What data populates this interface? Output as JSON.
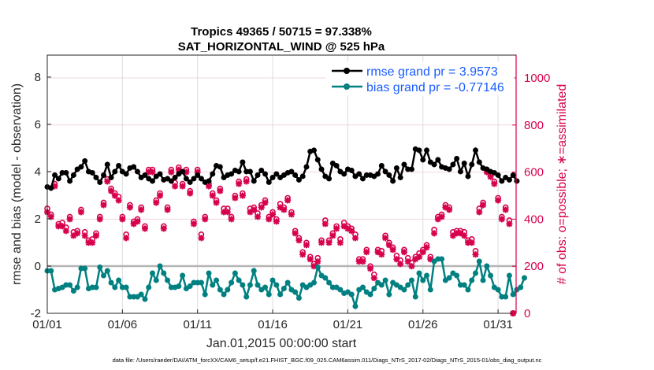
{
  "chart_data": {
    "type": "line",
    "title": [
      "Tropics 49365 / 50715 = 97.338%",
      "SAT_HORIZONTAL_WIND @ 525 hPa"
    ],
    "xlabel": "Jan.01,2015 00:00:00 start",
    "ylabel": "rmse and bias (model - observation)",
    "ylabel_right": "# of obs: o=possible; ∗=assimilated",
    "xticks": [
      {
        "day": 0,
        "label": "01/01"
      },
      {
        "day": 5,
        "label": "01/06"
      },
      {
        "day": 10,
        "label": "01/11"
      },
      {
        "day": 15,
        "label": "01/16"
      },
      {
        "day": 20,
        "label": "01/21"
      },
      {
        "day": 25,
        "label": "01/26"
      },
      {
        "day": 30,
        "label": "01/31"
      }
    ],
    "yticks": [
      "-2",
      "0",
      "2",
      "4",
      "6",
      "8"
    ],
    "yticks_right": [
      "0",
      "200",
      "400",
      "600",
      "800",
      "1000"
    ],
    "xlim": [
      0,
      31.2
    ],
    "ylim": [
      -2,
      8.93
    ],
    "ylim_right": [
      0,
      1097
    ],
    "x_step_days": 0.25,
    "legend": {
      "position": "top-right",
      "entries": [
        "rmse grand pr = 3.9573",
        "bias grand pr = -0.77146"
      ]
    },
    "colors": {
      "rmse": "#000000",
      "bias": "#008080",
      "obs": "#d6004c",
      "legend_text": "#1a5cff"
    },
    "series": [
      {
        "name": "rmse",
        "values": [
          3.35,
          3.3,
          3.85,
          3.7,
          3.95,
          3.95,
          3.6,
          3.85,
          4.1,
          4.2,
          4.45,
          4.0,
          3.95,
          3.75,
          3.55,
          3.85,
          4.3,
          3.75,
          4.0,
          4.25,
          4.0,
          3.9,
          4.15,
          4.2,
          4.0,
          3.75,
          3.85,
          3.7,
          3.6,
          3.8,
          3.9,
          3.65,
          3.7,
          3.6,
          3.75,
          3.9,
          4.0,
          3.7,
          3.55,
          3.7,
          3.85,
          3.7,
          3.55,
          3.6,
          3.9,
          4.25,
          4.2,
          3.75,
          3.85,
          3.9,
          4.05,
          4.0,
          4.4,
          4.0,
          4.0,
          3.6,
          3.85,
          4.05,
          3.9,
          3.55,
          3.75,
          3.9,
          3.75,
          3.85,
          3.95,
          4.0,
          3.85,
          3.65,
          3.8,
          4.2,
          4.85,
          4.9,
          4.5,
          4.1,
          3.8,
          3.7,
          4.35,
          4.25,
          4.0,
          3.9,
          4.1,
          4.05,
          3.8,
          3.9,
          3.7,
          3.85,
          3.85,
          3.8,
          3.9,
          4.25,
          4.0,
          3.85,
          3.6,
          4.15,
          3.75,
          4.3,
          4.1,
          4.1,
          4.95,
          4.9,
          4.5,
          4.9,
          4.4,
          4.3,
          4.5,
          4.2,
          4.15,
          4.1,
          4.3,
          4.55,
          4.0,
          4.35,
          3.8,
          4.3,
          4.9,
          4.4,
          4.15,
          4.1,
          4.0,
          3.95,
          3.85,
          3.6,
          3.75,
          3.65,
          3.85,
          3.6
        ]
      },
      {
        "name": "bias",
        "values": [
          -0.2,
          -0.2,
          -1.0,
          -0.95,
          -0.9,
          -0.8,
          -0.8,
          -1.05,
          -0.9,
          -0.1,
          -0.1,
          -0.95,
          -0.9,
          -0.9,
          -0.05,
          -0.4,
          -0.2,
          -0.7,
          -0.9,
          -0.6,
          -0.9,
          -0.9,
          -1.3,
          -1.3,
          -1.3,
          -1.2,
          -1.4,
          -0.9,
          -0.3,
          -0.6,
          0.0,
          -0.3,
          -0.6,
          -0.9,
          -0.9,
          -0.85,
          -0.4,
          -0.95,
          -0.85,
          -0.7,
          -0.7,
          -0.7,
          -1.2,
          -0.3,
          -0.8,
          -0.6,
          -1.0,
          -1.2,
          -1.0,
          -0.7,
          -0.3,
          -0.6,
          -0.8,
          -1.3,
          -0.8,
          -0.2,
          -0.8,
          -1.0,
          -0.9,
          -1.2,
          -0.6,
          -0.8,
          -1.2,
          -0.95,
          -0.7,
          -1.0,
          -1.1,
          -1.35,
          -0.8,
          -0.9,
          -0.8,
          -0.7,
          -0.05,
          -0.4,
          -0.5,
          -0.7,
          -0.9,
          -0.9,
          -1.0,
          -1.15,
          -1.1,
          -1.2,
          -1.7,
          -1.0,
          -0.9,
          -1.1,
          -1.2,
          -0.95,
          -0.7,
          -0.8,
          -0.6,
          -1.2,
          -0.7,
          -0.8,
          -0.9,
          -1.0,
          -0.8,
          -0.6,
          -1.3,
          -0.3,
          -0.6,
          -0.4,
          -1.0,
          0.2,
          0.3,
          0.3,
          -0.6,
          -0.5,
          -0.3,
          -0.4,
          -0.8,
          -0.8,
          -1.0,
          -0.6,
          -0.3,
          0.2,
          -0.6,
          0.0,
          -0.4,
          -0.9,
          -1.0,
          -1.3,
          -1.3,
          -0.4,
          -1.2,
          -1.0,
          -0.9,
          -0.5
        ]
      },
      {
        "name": "obs_assimilated",
        "values": [
          430,
          410,
          540,
          370,
          370,
          350,
          400,
          330,
          340,
          430,
          330,
          300,
          300,
          330,
          400,
          460,
          560,
          520,
          500,
          480,
          400,
          320,
          450,
          380,
          390,
          440,
          360,
          600,
          600,
          470,
          500,
          360,
          440,
          600,
          540,
          610,
          540,
          600,
          510,
          380,
          600,
          320,
          400,
          540,
          500,
          470,
          520,
          430,
          430,
          400,
          490,
          550,
          500,
          560,
          430,
          440,
          410,
          450,
          470,
          400,
          420,
          390,
          450,
          440,
          480,
          420,
          340,
          310,
          250,
          290,
          230,
          200,
          220,
          300,
          380,
          300,
          330,
          360,
          300,
          370,
          360,
          350,
          320,
          220,
          220,
          260,
          190,
          150,
          260,
          250,
          320,
          290,
          270,
          230,
          210,
          260,
          220,
          200,
          230,
          240,
          260,
          280,
          230,
          340,
          400,
          410,
          450,
          440,
          330,
          340,
          340,
          330,
          300,
          300,
          250,
          430,
          460,
          600,
          580,
          550,
          480,
          400,
          440,
          380,
          0
        ]
      },
      {
        "name": "obs_possible",
        "values": [
          445,
          420,
          550,
          380,
          385,
          365,
          410,
          345,
          350,
          440,
          345,
          310,
          315,
          340,
          410,
          470,
          570,
          530,
          510,
          495,
          410,
          335,
          460,
          390,
          400,
          450,
          370,
          610,
          610,
          480,
          510,
          370,
          450,
          610,
          555,
          620,
          550,
          610,
          520,
          390,
          610,
          335,
          410,
          550,
          510,
          480,
          530,
          445,
          445,
          410,
          500,
          560,
          510,
          570,
          445,
          450,
          425,
          460,
          480,
          410,
          430,
          400,
          465,
          450,
          490,
          430,
          350,
          320,
          260,
          300,
          240,
          210,
          235,
          310,
          395,
          310,
          340,
          370,
          315,
          385,
          370,
          360,
          335,
          230,
          230,
          270,
          200,
          165,
          270,
          265,
          330,
          300,
          280,
          245,
          225,
          270,
          235,
          215,
          240,
          255,
          270,
          290,
          240,
          355,
          410,
          420,
          460,
          450,
          345,
          350,
          350,
          345,
          310,
          315,
          265,
          445,
          470,
          610,
          590,
          560,
          490,
          410,
          450,
          395,
          0
        ]
      }
    ],
    "grid": true,
    "footer": "data file: /Users/raeder/DAI/ATM_forcXX/CAM6_setup/f.e21.FHIST_BGC.f09_025.CAM6assim.011/Diags_NTrS_2017-02/Diags_NTrS_2015-01/obs_diag_output.nc"
  }
}
